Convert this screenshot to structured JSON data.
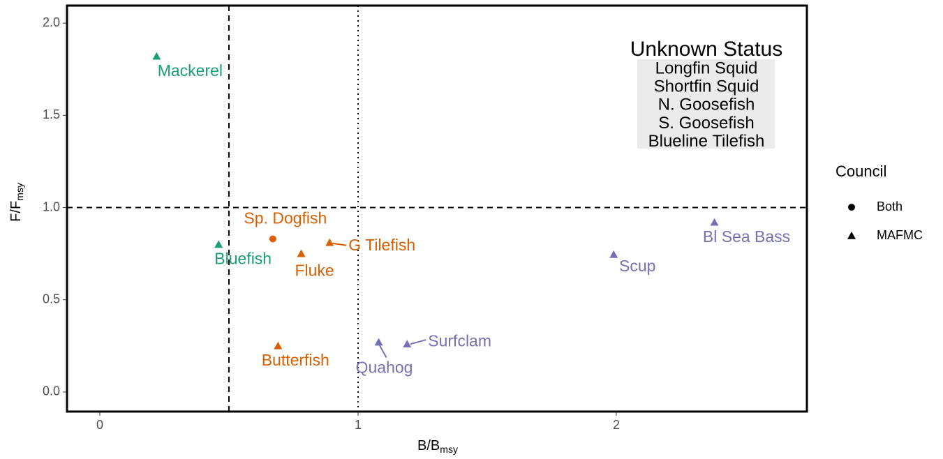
{
  "chart_data": {
    "type": "scatter",
    "xlabel": "B/B",
    "xlabel_sub": "msy",
    "ylabel": "F/F",
    "ylabel_sub": "msy",
    "xlim": [
      -0.127,
      2.738
    ],
    "ylim": [
      -0.106,
      2.095
    ],
    "xticks": [
      0,
      1,
      2
    ],
    "yticks": [
      {
        "value": 0,
        "label": "0.0"
      },
      {
        "value": 0.5,
        "label": "0.5"
      },
      {
        "value": 1,
        "label": "1.0"
      },
      {
        "value": 1.5,
        "label": "1.5"
      },
      {
        "value": 2,
        "label": "2.0"
      }
    ],
    "vlines": [
      {
        "value": 0.5,
        "style": "dashed"
      },
      {
        "value": 1,
        "style": "dotted"
      }
    ],
    "hlines": [
      {
        "value": 1,
        "style": "dashed"
      }
    ],
    "points": [
      {
        "label": "Mackerel",
        "x": 0.22,
        "y": 1.82,
        "shape": "triangle",
        "color": "#1b9e77"
      },
      {
        "label": "Bluefish",
        "x": 0.46,
        "y": 0.8,
        "shape": "triangle",
        "color": "#1b9e77"
      },
      {
        "label": "Sp. Dogfish",
        "x": 0.67,
        "y": 0.83,
        "shape": "circle",
        "color": "#d95f02"
      },
      {
        "label": "Fluke",
        "x": 0.78,
        "y": 0.75,
        "shape": "triangle",
        "color": "#d95f02"
      },
      {
        "label": "G Tilefish",
        "x": 0.89,
        "y": 0.81,
        "shape": "triangle",
        "color": "#d95f02"
      },
      {
        "label": "Butterfish",
        "x": 0.69,
        "y": 0.25,
        "shape": "triangle",
        "color": "#d95f02"
      },
      {
        "label": "Quahog",
        "x": 1.08,
        "y": 0.27,
        "shape": "triangle",
        "color": "#7570b3"
      },
      {
        "label": "Surfclam",
        "x": 1.19,
        "y": 0.26,
        "shape": "triangle",
        "color": "#7570b3"
      },
      {
        "label": "Scup",
        "x": 1.99,
        "y": 0.745,
        "shape": "triangle",
        "color": "#7570b3"
      },
      {
        "label": "Bl Sea Bass",
        "x": 2.38,
        "y": 0.92,
        "shape": "triangle",
        "color": "#7570b3"
      }
    ],
    "annotation": {
      "title": "Unknown Status",
      "lines": [
        "Longfin Squid",
        "Shortfin Squid",
        "N. Goosefish",
        "S. Goosefish",
        "Blueline Tilefish"
      ]
    },
    "legend": {
      "title": "Council",
      "entries": [
        {
          "name": "Both",
          "shape": "circle"
        },
        {
          "name": "MAFMC",
          "shape": "triangle"
        }
      ]
    }
  }
}
